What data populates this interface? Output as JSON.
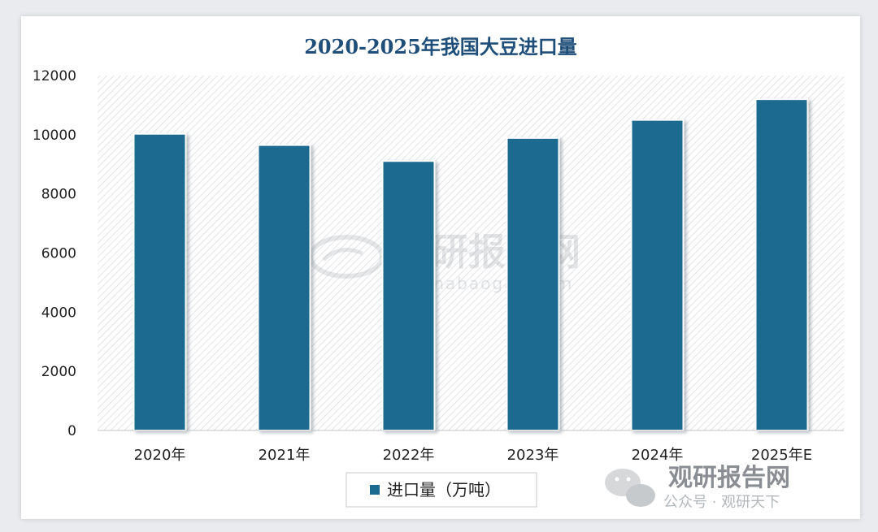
{
  "colors": {
    "bar": "#1b6a90",
    "bar_shadow": "#9aa4ad",
    "title": "#1f4e79",
    "hatch": "#c9ccd0"
  },
  "watermark": {
    "brand": "观研报告网",
    "url": "chinabaogao.com",
    "account": "公众号 · 观研天下"
  },
  "chart_data": {
    "type": "bar",
    "title": "2020-2025年我国大豆进口量",
    "categories": [
      "2020年",
      "2021年",
      "2022年",
      "2023年",
      "2024年",
      "2025年E"
    ],
    "series": [
      {
        "name": "进口量（万吨）",
        "values": [
          10030,
          9650,
          9110,
          9890,
          10500,
          11200
        ]
      }
    ],
    "yticks": [
      0,
      2000,
      4000,
      6000,
      8000,
      10000,
      12000
    ],
    "ylim": [
      0,
      12000
    ],
    "legend": "bottom",
    "grid": false
  }
}
